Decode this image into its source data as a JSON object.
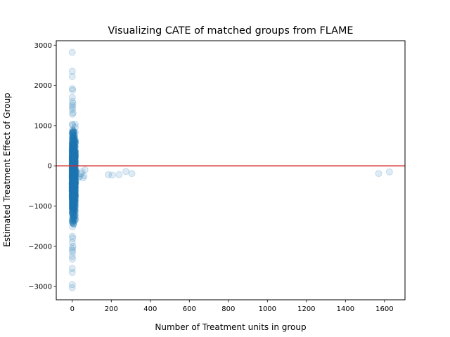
{
  "chart_data": {
    "type": "scatter",
    "title": "Visualizing CATE of matched groups from FLAME",
    "xlabel": "Number of Treatment units in group",
    "ylabel": "Estimated Treatment Effect of Group",
    "xlim": [
      -82,
      1705
    ],
    "ylim": [
      -3330,
      3110
    ],
    "xticks": [
      0,
      200,
      400,
      600,
      800,
      1000,
      1200,
      1400,
      1600
    ],
    "yticks": [
      -3000,
      -2000,
      -1000,
      0,
      1000,
      2000,
      3000
    ],
    "grid": false,
    "hline": {
      "y": 0,
      "color": "#d62728"
    },
    "marker_color": "#1f77b4",
    "marker_alpha": 0.15,
    "cluster": {
      "x_values": [
        0,
        1,
        2,
        3,
        4,
        5,
        6,
        7,
        8,
        10,
        12,
        15
      ],
      "y_min": -1650,
      "y_max": 1200,
      "count": 1500
    },
    "points": [
      {
        "x": 0,
        "y": 2820
      },
      {
        "x": 0,
        "y": 2350
      },
      {
        "x": 0,
        "y": 2220
      },
      {
        "x": 0,
        "y": 1920
      },
      {
        "x": 2,
        "y": 1880
      },
      {
        "x": 0,
        "y": 1700
      },
      {
        "x": 1,
        "y": 1600
      },
      {
        "x": 3,
        "y": 1550
      },
      {
        "x": 0,
        "y": 1500
      },
      {
        "x": 2,
        "y": 1450
      },
      {
        "x": 0,
        "y": 1400
      },
      {
        "x": 4,
        "y": 1320
      },
      {
        "x": 1,
        "y": 1280
      },
      {
        "x": 0,
        "y": -1750
      },
      {
        "x": 2,
        "y": -1800
      },
      {
        "x": 0,
        "y": -1900
      },
      {
        "x": 3,
        "y": -2000
      },
      {
        "x": 1,
        "y": -2050
      },
      {
        "x": 0,
        "y": -2100
      },
      {
        "x": 2,
        "y": -2150
      },
      {
        "x": 0,
        "y": -2250
      },
      {
        "x": 1,
        "y": -2320
      },
      {
        "x": 0,
        "y": -2550
      },
      {
        "x": 0,
        "y": -2650
      },
      {
        "x": 0,
        "y": -2950
      },
      {
        "x": 0,
        "y": -3030
      },
      {
        "x": 15,
        "y": -200
      },
      {
        "x": 20,
        "y": -250
      },
      {
        "x": 22,
        "y": -150
      },
      {
        "x": 30,
        "y": -300
      },
      {
        "x": 38,
        "y": -260
      },
      {
        "x": 45,
        "y": -200
      },
      {
        "x": 50,
        "y": -150
      },
      {
        "x": 55,
        "y": -300
      },
      {
        "x": 60,
        "y": -250
      },
      {
        "x": 65,
        "y": -100
      },
      {
        "x": 18,
        "y": -420
      },
      {
        "x": 12,
        "y": -380
      },
      {
        "x": 185,
        "y": -220
      },
      {
        "x": 205,
        "y": -230
      },
      {
        "x": 240,
        "y": -220
      },
      {
        "x": 275,
        "y": -140
      },
      {
        "x": 305,
        "y": -190
      },
      {
        "x": 1570,
        "y": -190
      },
      {
        "x": 1625,
        "y": -150
      }
    ]
  }
}
